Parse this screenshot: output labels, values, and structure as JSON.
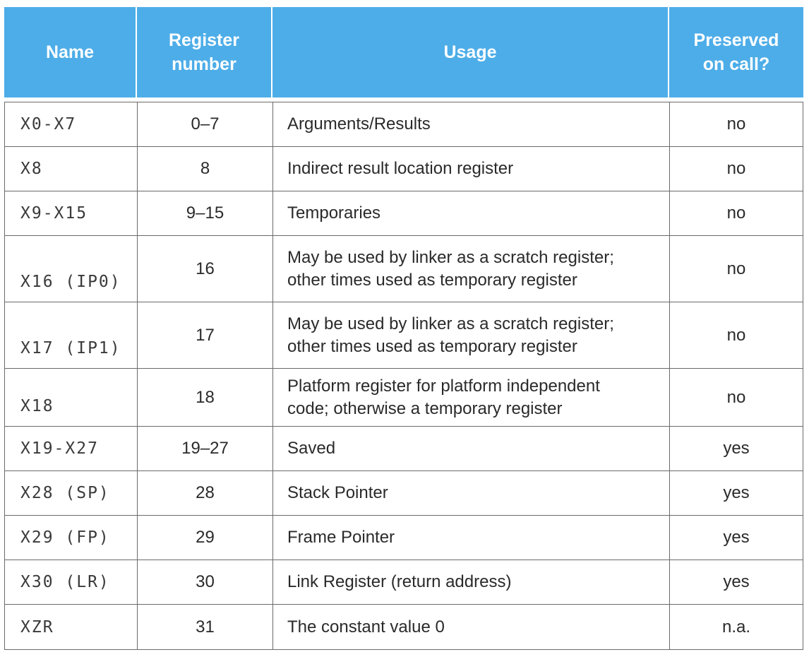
{
  "table": {
    "headers": {
      "name": "Name",
      "register_number": "Register\nnumber",
      "usage": "Usage",
      "preserved": "Preserved\non call?"
    },
    "rows": [
      {
        "name": "X0-X7",
        "number": "0–7",
        "usage": "Arguments/Results",
        "preserved": "no"
      },
      {
        "name": "X8",
        "number": "8",
        "usage": "Indirect result location register",
        "preserved": "no"
      },
      {
        "name": "X9-X15",
        "number": "9–15",
        "usage": "Temporaries",
        "preserved": "no"
      },
      {
        "name": "X16 (IP0)",
        "number": "16",
        "usage": "May be used by linker as a scratch register;\nother times used as temporary register",
        "preserved": "no"
      },
      {
        "name": "X17 (IP1)",
        "number": "17",
        "usage": "May be used by linker as a scratch register;\nother times used as temporary register",
        "preserved": "no"
      },
      {
        "name": "X18",
        "number": "18",
        "usage": "Platform register for platform independent\ncode; otherwise a temporary register",
        "preserved": "no"
      },
      {
        "name": "X19-X27",
        "number": "19–27",
        "usage": "Saved",
        "preserved": "yes"
      },
      {
        "name": "X28 (SP)",
        "number": "28",
        "usage": "Stack Pointer",
        "preserved": "yes"
      },
      {
        "name": "X29 (FP)",
        "number": "29",
        "usage": "Frame Pointer",
        "preserved": "yes"
      },
      {
        "name": "X30 (LR)",
        "number": "30",
        "usage": "Link Register (return address)",
        "preserved": "yes"
      },
      {
        "name": "XZR",
        "number": "31",
        "usage": "The constant value 0",
        "preserved": "n.a."
      }
    ]
  }
}
